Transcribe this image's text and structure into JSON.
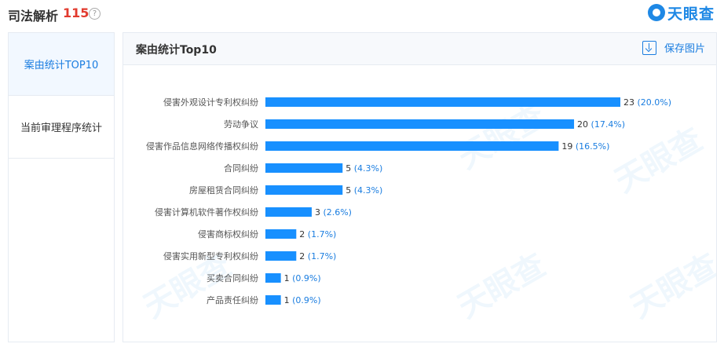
{
  "header": {
    "title": "司法解析",
    "count": "115",
    "help_symbol": "?",
    "brand": "天眼查"
  },
  "sidebar": {
    "items": [
      {
        "label": "案由统计TOP10"
      },
      {
        "label": "当前审理程序统计"
      }
    ]
  },
  "panel": {
    "title": "案由统计Top10",
    "save_label": "保存图片"
  },
  "watermark": {
    "text": "天眼查"
  },
  "colors": {
    "bar": "#1890ff",
    "active_tab": "#1a7de0",
    "count": "#e23a2e"
  },
  "chart_data": {
    "type": "bar",
    "orientation": "horizontal",
    "categories": [
      "侵害外观设计专利权纠纷",
      "劳动争议",
      "侵害作品信息网络传播权纠纷",
      "合同纠纷",
      "房屋租赁合同纠纷",
      "侵害计算机软件著作权纠纷",
      "侵害商标权纠纷",
      "侵害实用新型专利权纠纷",
      "买卖合同纠纷",
      "产品责任纠纷"
    ],
    "values": [
      23,
      20,
      19,
      5,
      5,
      3,
      2,
      2,
      1,
      1
    ],
    "labels": [
      "23 (20.0%)",
      "20 (17.4%)",
      "19 (16.5%)",
      "5 (4.3%)",
      "5 (4.3%)",
      "3 (2.6%)",
      "2 (1.7%)",
      "2 (1.7%)",
      "1 (0.9%)",
      "1 (0.9%)"
    ],
    "xlim": [
      0,
      23
    ],
    "title": "",
    "xlabel": "",
    "ylabel": "",
    "grid": false
  }
}
